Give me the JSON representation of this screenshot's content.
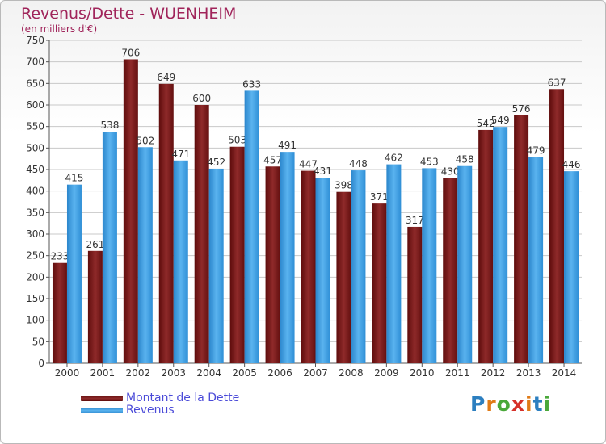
{
  "title": "Revenus/Dette - WUENHEIM",
  "subtitle": "(en milliers d'€)",
  "brand": {
    "text": "Proxiti",
    "letters": [
      "P",
      "r",
      "o",
      "x",
      "i",
      "t",
      "i"
    ],
    "colors": [
      "#2c7fc0",
      "#e07b17",
      "#4aa83a",
      "#d6312a",
      "#e07b17",
      "#2c7fc0",
      "#4aa83a"
    ]
  },
  "colors": {
    "dette": "#7a1414",
    "revenus": "#3b9fe3",
    "grid": "#c8c8c8",
    "axis_text": "#333333"
  },
  "chart_data": {
    "type": "bar",
    "title": "Revenus/Dette - WUENHEIM",
    "ylabel": "(en milliers d'€)",
    "xlabel": "",
    "ylim": [
      0,
      750
    ],
    "yticks": [
      0,
      50,
      100,
      150,
      200,
      250,
      300,
      350,
      400,
      450,
      500,
      550,
      600,
      650,
      700,
      750
    ],
    "categories": [
      "2000",
      "2001",
      "2002",
      "2003",
      "2004",
      "2005",
      "2006",
      "2007",
      "2008",
      "2009",
      "2010",
      "2011",
      "2012",
      "2013",
      "2014"
    ],
    "series": [
      {
        "name": "Montant de la Dette",
        "values": [
          233,
          261,
          706,
          649,
          600,
          503,
          457,
          447,
          398,
          371,
          317,
          430,
          542,
          576,
          637
        ]
      },
      {
        "name": "Revenus",
        "values": [
          415,
          538,
          502,
          471,
          452,
          633,
          491,
          431,
          448,
          462,
          453,
          458,
          549,
          479,
          446
        ]
      }
    ],
    "legend": "bottom-left",
    "grid": true
  }
}
